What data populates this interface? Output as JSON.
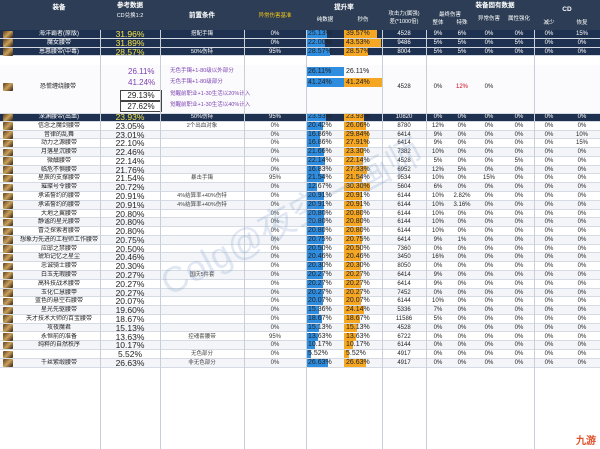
{
  "header": {
    "equipment": "装备",
    "ref_data": "参考数据",
    "cd_ratio": "CD兑换1:2",
    "prerequisite": "前置条件",
    "abnormal_base": "异常伤害基准",
    "boost_rate": "提升率",
    "pure_data": "纯数据",
    "sec_dmg": "秒伤",
    "atk_gap": "攻击力(属强)",
    "atk_gap2": "差(*1000倍)",
    "equip_data": "装备固有数据",
    "final_dmg": "最终伤害",
    "whole": "整体",
    "special": "特殊",
    "abnormal_boost": "异常伤害",
    "attr_boost": "属性强化",
    "cd": "CD",
    "reduce": "减少",
    "ignore": "恢复"
  },
  "rows": [
    {
      "name": "海洋霸者(原版)",
      "cd": "31.96%",
      "pre": "搭配手镯",
      "abn": "0%",
      "pure": "25.13%",
      "sec": "39.57%",
      "atk": "4528",
      "whole": "9%",
      "spec": "6%",
      "abn2": "0%",
      "attr": "0%",
      "red": "0%",
      "ign": "15%",
      "pure_v": 25.13,
      "sec_v": 39.57,
      "hl": true
    },
    {
      "name": "魔女腰带",
      "cd": "31.89%",
      "pre": "",
      "abn": "0%",
      "pure": "22.00%",
      "sec": "43.53%",
      "atk": "9486",
      "whole": "5%",
      "spec": "5%",
      "abn2": "0%",
      "attr": "5%",
      "red": "0%",
      "ign": "0%",
      "pure_v": 22.0,
      "sec_v": 43.53,
      "hl": true
    },
    {
      "name": "恩惠腰带(中毒)",
      "cd": "28.57%",
      "pre": "50%伤特",
      "abn": "95%",
      "pure": "28.57%",
      "sec": "28.57%",
      "atk": "8004",
      "whole": "5%",
      "spec": "5%",
      "abn2": "0%",
      "attr": "0%",
      "red": "0%",
      "ign": "0%",
      "pure_v": 28.57,
      "sec_v": 28.57,
      "hl": true
    },
    {
      "name": "深渊腰带(出血)",
      "cd": "23.93%",
      "pre": "50%伤特",
      "abn": "95%",
      "pure": "23.93%",
      "sec": "23.93%",
      "atk": "10820",
      "whole": "0%",
      "spec": "0%",
      "abn2": "0%",
      "attr": "0%",
      "red": "0%",
      "ign": "0%",
      "pure_v": 23.93,
      "sec_v": 23.93,
      "hl": true
    },
    {
      "name": "信念之魔剑腰带",
      "cd": "23.05%",
      "pre": "2个出血对象",
      "abn": "0%",
      "pure": "20.42%",
      "sec": "26.06%",
      "atk": "8780",
      "whole": "12%",
      "spec": "0%",
      "abn2": "0%",
      "attr": "0%",
      "red": "0%",
      "ign": "0%",
      "pure_v": 20.42,
      "sec_v": 26.06
    },
    {
      "name": "音律的乱舞",
      "cd": "23.01%",
      "pre": "",
      "abn": "0%",
      "pure": "16.86%",
      "sec": "29.84%",
      "atk": "6414",
      "whole": "9%",
      "spec": "0%",
      "abn2": "0%",
      "attr": "0%",
      "red": "0%",
      "ign": "10%",
      "pure_v": 16.86,
      "sec_v": 29.84
    },
    {
      "name": "动力之源腰带",
      "cd": "22.10%",
      "pre": "",
      "abn": "0%",
      "pure": "16.86%",
      "sec": "27.91%",
      "atk": "6414",
      "whole": "9%",
      "spec": "0%",
      "abn2": "0%",
      "attr": "0%",
      "red": "0%",
      "ign": "15%",
      "pure_v": 16.86,
      "sec_v": 27.91
    },
    {
      "name": "月落星沉腰带",
      "cd": "22.46%",
      "pre": "",
      "abn": "0%",
      "pure": "21.66%",
      "sec": "23.30%",
      "atk": "7382",
      "whole": "10%",
      "spec": "0%",
      "abn2": "0%",
      "attr": "0%",
      "red": "0%",
      "ign": "0%",
      "pure_v": 21.66,
      "sec_v": 23.3
    },
    {
      "name": "微醺腰带",
      "cd": "22.14%",
      "pre": "",
      "abn": "0%",
      "pure": "22.14%",
      "sec": "22.14%",
      "atk": "4528",
      "whole": "5%",
      "spec": "0%",
      "abn2": "0%",
      "attr": "5%",
      "red": "0%",
      "ign": "0%",
      "pure_v": 22.14,
      "sec_v": 22.14
    },
    {
      "name": "临危不惧腰带",
      "cd": "21.76%",
      "pre": "",
      "abn": "0%",
      "pure": "16.83%",
      "sec": "27.33%",
      "atk": "6952",
      "whole": "12%",
      "spec": "5%",
      "abn2": "0%",
      "attr": "0%",
      "red": "0%",
      "ign": "0%",
      "pure_v": 16.83,
      "sec_v": 27.33
    },
    {
      "name": "星辰的支撑腰带",
      "cd": "21.54%",
      "pre": "暴击手镯",
      "abn": "95%",
      "pure": "21.54%",
      "sec": "21.54%",
      "atk": "9534",
      "whole": "10%",
      "spec": "0%",
      "abn2": "15%",
      "attr": "0%",
      "red": "0%",
      "ign": "0%",
      "pure_v": 21.54,
      "sec_v": 21.54
    },
    {
      "name": "璀璨号令腰带",
      "cd": "20.72%",
      "pre": "",
      "abn": "0%",
      "pure": "12.67%",
      "sec": "30.30%",
      "atk": "5604",
      "whole": "6%",
      "spec": "0%",
      "abn2": "0%",
      "attr": "0%",
      "red": "0%",
      "ign": "0%",
      "pure_v": 12.67,
      "sec_v": 30.3
    },
    {
      "name": "承诺誓约的腰带",
      "cd": "20.91%",
      "pre": "4%结算率+40%伤特",
      "abn": "0%",
      "pure": "20.91%",
      "sec": "20.91%",
      "atk": "6144",
      "whole": "10%",
      "spec": "2.82%",
      "abn2": "0%",
      "attr": "0%",
      "red": "0%",
      "ign": "0%",
      "pure_v": 20.91,
      "sec_v": 20.91
    },
    {
      "name": "承诺誓约的腰带",
      "cd": "20.91%",
      "pre": "4%结算率+40%伤特",
      "abn": "0%",
      "pure": "20.91%",
      "sec": "20.91%",
      "atk": "6144",
      "whole": "10%",
      "spec": "3.16%",
      "abn2": "0%",
      "attr": "0%",
      "red": "0%",
      "ign": "0%",
      "pure_v": 20.91,
      "sec_v": 20.91
    },
    {
      "name": "大地之翼腰带",
      "cd": "20.80%",
      "pre": "",
      "abn": "0%",
      "pure": "20.80%",
      "sec": "20.80%",
      "atk": "6144",
      "whole": "10%",
      "spec": "0%",
      "abn2": "0%",
      "attr": "0%",
      "red": "0%",
      "ign": "0%",
      "pure_v": 20.8,
      "sec_v": 20.8
    },
    {
      "name": "静谧的星光腰带",
      "cd": "20.80%",
      "pre": "",
      "abn": "0%",
      "pure": "20.80%",
      "sec": "20.80%",
      "atk": "6144",
      "whole": "10%",
      "spec": "0%",
      "abn2": "0%",
      "attr": "0%",
      "red": "0%",
      "ign": "0%",
      "pure_v": 20.8,
      "sec_v": 20.8
    },
    {
      "name": "冒泛探索者腰带",
      "cd": "20.80%",
      "pre": "",
      "abn": "0%",
      "pure": "20.80%",
      "sec": "20.80%",
      "atk": "6144",
      "whole": "10%",
      "spec": "0%",
      "abn2": "0%",
      "attr": "0%",
      "red": "0%",
      "ign": "0%",
      "pure_v": 20.8,
      "sec_v": 20.8
    },
    {
      "name": "想象力先进的工程师工作腰带",
      "cd": "20.75%",
      "pre": "",
      "abn": "0%",
      "pure": "20.75%",
      "sec": "20.75%",
      "atk": "6414",
      "whole": "9%",
      "spec": "1%",
      "abn2": "0%",
      "attr": "0%",
      "red": "0%",
      "ign": "0%",
      "pure_v": 20.75,
      "sec_v": 20.75
    },
    {
      "name": "应邸之禁腰带",
      "cd": "20.50%",
      "pre": "",
      "abn": "0%",
      "pure": "20.50%",
      "sec": "20.50%",
      "atk": "7360",
      "whole": "0%",
      "spec": "0%",
      "abn2": "0%",
      "attr": "0%",
      "red": "0%",
      "ign": "0%",
      "pure_v": 20.5,
      "sec_v": 20.5
    },
    {
      "name": "琥珀记忆之星尘",
      "cd": "20.46%",
      "pre": "",
      "abn": "0%",
      "pure": "20.46%",
      "sec": "20.46%",
      "atk": "3450",
      "whole": "16%",
      "spec": "0%",
      "abn2": "0%",
      "attr": "0%",
      "red": "0%",
      "ign": "0%",
      "pure_v": 20.46,
      "sec_v": 20.46
    },
    {
      "name": "忠诚骑士腰带",
      "cd": "20.30%",
      "pre": "",
      "abn": "0%",
      "pure": "20.30%",
      "sec": "20.30%",
      "atk": "8050",
      "whole": "0%",
      "spec": "0%",
      "abn2": "0%",
      "attr": "0%",
      "red": "0%",
      "ign": "0%",
      "pure_v": 20.3,
      "sec_v": 20.3
    },
    {
      "name": "白玉无瑕腰带",
      "cd": "20.27%",
      "pre": "国庆5件套",
      "abn": "0%",
      "pure": "20.27%",
      "sec": "20.27%",
      "atk": "6414",
      "whole": "9%",
      "spec": "0%",
      "abn2": "0%",
      "attr": "0%",
      "red": "0%",
      "ign": "0%",
      "pure_v": 20.27,
      "sec_v": 20.27
    },
    {
      "name": "高科技战术腰带",
      "cd": "20.27%",
      "pre": "",
      "abn": "0%",
      "pure": "20.27%",
      "sec": "20.27%",
      "atk": "6414",
      "whole": "9%",
      "spec": "0%",
      "abn2": "0%",
      "attr": "0%",
      "red": "0%",
      "ign": "0%",
      "pure_v": 20.27,
      "sec_v": 20.27
    },
    {
      "name": "玉化仁慧腰甲",
      "cd": "20.27%",
      "pre": "",
      "abn": "0%",
      "pure": "20.27%",
      "sec": "20.27%",
      "atk": "7452",
      "whole": "0%",
      "spec": "0%",
      "abn2": "0%",
      "attr": "0%",
      "red": "0%",
      "ign": "0%",
      "pure_v": 20.27,
      "sec_v": 20.27
    },
    {
      "name": "蓝色的悬空石腰带",
      "cd": "20.07%",
      "pre": "",
      "abn": "0%",
      "pure": "20.07%",
      "sec": "20.07%",
      "atk": "6144",
      "whole": "10%",
      "spec": "0%",
      "abn2": "0%",
      "attr": "0%",
      "red": "0%",
      "ign": "0%",
      "pure_v": 20.07,
      "sec_v": 20.07
    },
    {
      "name": "星光先驱腰带",
      "cd": "19.60%",
      "pre": "",
      "abn": "0%",
      "pure": "15.36%",
      "sec": "24.14%",
      "atk": "5336",
      "whole": "7%",
      "spec": "0%",
      "abn2": "0%",
      "attr": "0%",
      "red": "0%",
      "ign": "0%",
      "pure_v": 15.36,
      "sec_v": 24.14
    },
    {
      "name": "天才技术大师的百宝腰带",
      "cd": "18.67%",
      "pre": "",
      "abn": "0%",
      "pure": "18.67%",
      "sec": "18.67%",
      "atk": "11586",
      "whole": "5%",
      "spec": "0%",
      "abn2": "0%",
      "attr": "0%",
      "red": "0%",
      "ign": "0%",
      "pure_v": 18.67,
      "sec_v": 18.67
    },
    {
      "name": "攻夜魔君",
      "cd": "15.13%",
      "pre": "",
      "abn": "0%",
      "pure": "15.13%",
      "sec": "15.13%",
      "atk": "4528",
      "whole": "0%",
      "spec": "0%",
      "abn2": "0%",
      "attr": "0%",
      "red": "0%",
      "ign": "0%",
      "pure_v": 15.13,
      "sec_v": 15.13
    },
    {
      "name": "永恒前的准备",
      "cd": "13.63%",
      "pre": "控魂套腰带",
      "abn": "95%",
      "pure": "13.63%",
      "sec": "13.63%",
      "atk": "6722",
      "whole": "0%",
      "spec": "0%",
      "abn2": "0%",
      "attr": "0%",
      "red": "0%",
      "ign": "0%",
      "pure_v": 13.63,
      "sec_v": 13.63
    },
    {
      "name": "纯粹的自然秩序",
      "cd": "10.17%",
      "pre": "",
      "abn": "0%",
      "pure": "10.17%",
      "sec": "10.17%",
      "atk": "6144",
      "whole": "0%",
      "spec": "0%",
      "abn2": "0%",
      "attr": "0%",
      "red": "0%",
      "ign": "0%",
      "pure_v": 10.17,
      "sec_v": 10.17
    },
    {
      "name": "",
      "cd": "5.52%",
      "pre": "无色部分",
      "abn": "0%",
      "pure": "5.52%",
      "sec": "5.52%",
      "atk": "4917",
      "whole": "0%",
      "spec": "0%",
      "abn2": "0%",
      "attr": "0%",
      "red": "0%",
      "ign": "0%",
      "pure_v": 5.52,
      "sec_v": 5.52
    },
    {
      "name": "千丝紫缎腰带",
      "cd": "26.63%",
      "pre": "非无色部分",
      "abn": "0%",
      "pure": "26.63%",
      "sec": "26.63%",
      "atk": "4917",
      "whole": "0%",
      "spec": "0%",
      "abn2": "0%",
      "attr": "0%",
      "red": "0%",
      "ign": "0%",
      "pure_v": 26.63,
      "sec_v": 26.63
    }
  ],
  "special": {
    "name": "恐慌缠绕腰带",
    "cd1": "26.11%",
    "cd2": "41.24%",
    "cd3": "29.13%",
    "cd4": "27.62%",
    "note1": "无色手镯+1-80级以外部分",
    "note2": "无色手镯+1-80级部分",
    "note3": "觉醒前职业+1-30生活以20%计入",
    "note4": "觉醒前职业+1-30生活以40%计入",
    "pure1": "26.11%",
    "sec1": "26.11%",
    "pure2": "41.24%",
    "sec2": "41.24%",
    "atk": "4528",
    "whole": "0%",
    "spec": "12%",
    "abn": "0%",
    "pure1_v": 26.11,
    "pure2_v": 41.24
  },
  "watermark": "Colg@夜空一画师",
  "logo": "九游"
}
